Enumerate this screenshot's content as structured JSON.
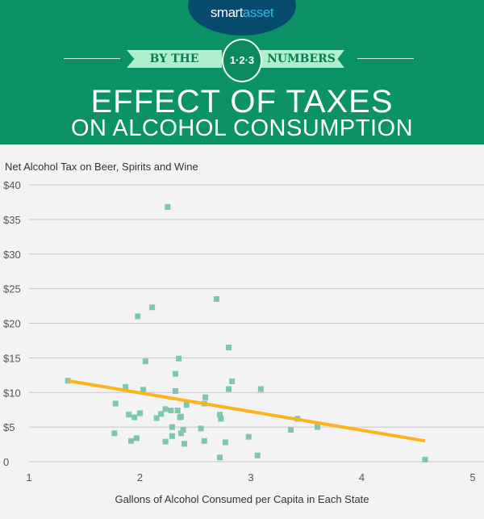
{
  "header": {
    "logo_part1": "smart",
    "logo_part2": "asset",
    "ribbon_left": "BY THE",
    "badge": "1·2·3",
    "ribbon_right": "NUMBERS",
    "title_line1": "EFFECT OF TAXES",
    "title_line2": "ON ALCOHOL CONSUMPTION"
  },
  "colors": {
    "header": "#0b9267",
    "points": "#7cc7ad",
    "trend": "#fbb41c"
  },
  "chart_data": {
    "type": "scatter",
    "xlabel": "Gallons of Alcohol Consumed per Capita in Each State",
    "ylabel": "Net Alcohol Tax on Beer, Spirits and Wine",
    "xlim": [
      1,
      5
    ],
    "ylim": [
      0,
      40
    ],
    "x_ticks": [
      "1",
      "2",
      "3",
      "4",
      "5"
    ],
    "y_ticks": [
      "0",
      "$5",
      "$10",
      "$15",
      "$20",
      "$25",
      "$30",
      "$35",
      "$40"
    ],
    "y_tick_values": [
      0,
      5,
      10,
      15,
      20,
      25,
      30,
      35,
      40
    ],
    "x_tick_values": [
      1,
      2,
      3,
      4,
      5
    ],
    "grid": "horizontal",
    "points": [
      [
        1.35,
        11.7
      ],
      [
        2.25,
        36.8
      ],
      [
        2.69,
        23.5
      ],
      [
        2.11,
        22.3
      ],
      [
        1.98,
        21.0
      ],
      [
        2.8,
        16.5
      ],
      [
        2.05,
        14.5
      ],
      [
        2.35,
        14.9
      ],
      [
        2.32,
        12.7
      ],
      [
        1.87,
        10.8
      ],
      [
        2.03,
        10.4
      ],
      [
        2.32,
        10.2
      ],
      [
        2.83,
        11.6
      ],
      [
        2.8,
        10.5
      ],
      [
        3.09,
        10.5
      ],
      [
        1.78,
        8.4
      ],
      [
        2.59,
        9.3
      ],
      [
        2.58,
        8.4
      ],
      [
        2.42,
        8.2
      ],
      [
        2.23,
        7.6
      ],
      [
        2.28,
        7.4
      ],
      [
        2.34,
        7.4
      ],
      [
        2.19,
        6.9
      ],
      [
        2.15,
        6.3
      ],
      [
        1.9,
        6.8
      ],
      [
        1.95,
        6.4
      ],
      [
        2.0,
        7.0
      ],
      [
        2.37,
        6.5
      ],
      [
        2.36,
        6.4
      ],
      [
        2.72,
        6.8
      ],
      [
        2.73,
        6.2
      ],
      [
        1.77,
        4.1
      ],
      [
        2.29,
        5.0
      ],
      [
        2.39,
        4.6
      ],
      [
        2.37,
        4.1
      ],
      [
        2.29,
        3.7
      ],
      [
        2.55,
        4.8
      ],
      [
        2.98,
        3.6
      ],
      [
        1.92,
        3.0
      ],
      [
        1.97,
        3.4
      ],
      [
        2.23,
        2.9
      ],
      [
        2.4,
        2.6
      ],
      [
        2.58,
        3.0
      ],
      [
        2.77,
        2.8
      ],
      [
        2.72,
        0.6
      ],
      [
        3.06,
        0.9
      ],
      [
        3.36,
        4.6
      ],
      [
        3.42,
        6.2
      ],
      [
        3.6,
        5.0
      ],
      [
        4.57,
        0.3
      ]
    ],
    "trendline": [
      [
        1.35,
        11.7
      ],
      [
        4.57,
        3.0
      ]
    ]
  }
}
